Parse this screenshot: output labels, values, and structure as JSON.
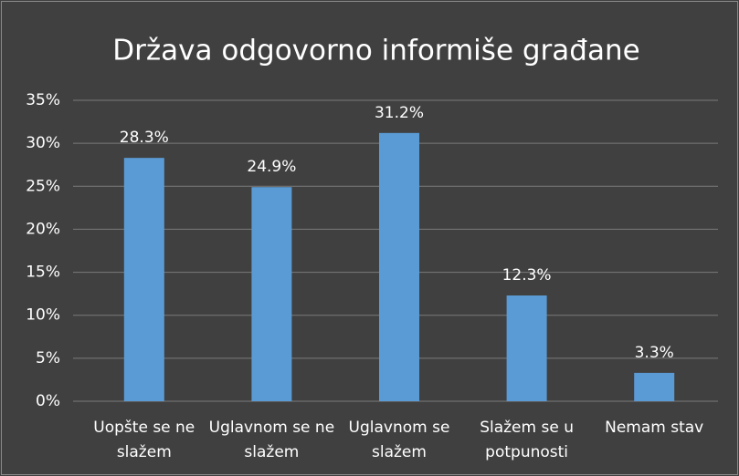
{
  "chart_data": {
    "type": "bar",
    "title": "Država odgovorno informiše građane",
    "categories": [
      "Uopšte se ne slažem",
      "Uglavnom se ne slažem",
      "Uglavnom se slažem",
      "Slažem se u potpunosti",
      "Nemam stav"
    ],
    "values": [
      28.3,
      24.9,
      31.2,
      12.3,
      3.3
    ],
    "value_labels": [
      "28.3%",
      "24.9%",
      "31.2%",
      "12.3%",
      "3.3%"
    ],
    "color": "#5b9bd5",
    "ylim": [
      0,
      35
    ],
    "yticks": [
      {
        "value": 0,
        "label": "0%"
      },
      {
        "value": 5,
        "label": "5%"
      },
      {
        "value": 10,
        "label": "10%"
      },
      {
        "value": 15,
        "label": "15%"
      },
      {
        "value": 20,
        "label": "20%"
      },
      {
        "value": 25,
        "label": "25%"
      },
      {
        "value": 30,
        "label": "30%"
      },
      {
        "value": 35,
        "label": "35%"
      }
    ],
    "grid": true
  }
}
